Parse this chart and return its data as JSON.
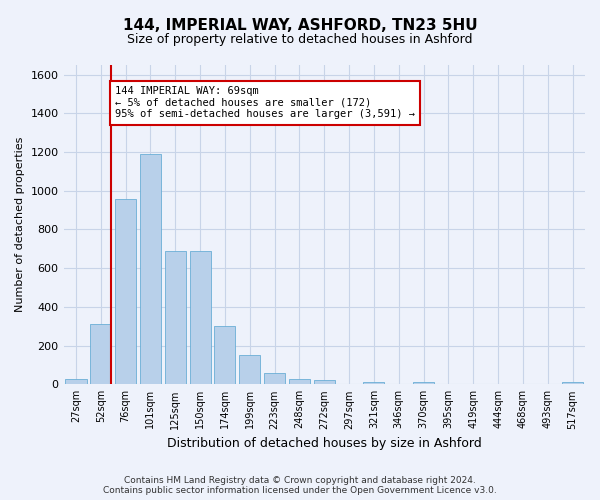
{
  "title": "144, IMPERIAL WAY, ASHFORD, TN23 5HU",
  "subtitle": "Size of property relative to detached houses in Ashford",
  "xlabel": "Distribution of detached houses by size in Ashford",
  "ylabel": "Number of detached properties",
  "categories": [
    "27sqm",
    "52sqm",
    "76sqm",
    "101sqm",
    "125sqm",
    "150sqm",
    "174sqm",
    "199sqm",
    "223sqm",
    "248sqm",
    "272sqm",
    "297sqm",
    "321sqm",
    "346sqm",
    "370sqm",
    "395sqm",
    "419sqm",
    "444sqm",
    "468sqm",
    "493sqm",
    "517sqm"
  ],
  "values": [
    25,
    310,
    960,
    1190,
    690,
    690,
    300,
    150,
    60,
    25,
    20,
    0,
    10,
    0,
    10,
    0,
    0,
    0,
    0,
    0,
    10
  ],
  "bar_color": "#b8d0ea",
  "bar_edge_color": "#6aaed6",
  "grid_color": "#c8d4e8",
  "background_color": "#eef2fb",
  "vline_color": "#cc0000",
  "vline_x_index": 1,
  "annotation_text": "144 IMPERIAL WAY: 69sqm\n← 5% of detached houses are smaller (172)\n95% of semi-detached houses are larger (3,591) →",
  "annotation_box_color": "#ffffff",
  "annotation_box_edge": "#cc0000",
  "ylim": [
    0,
    1650
  ],
  "yticks": [
    0,
    200,
    400,
    600,
    800,
    1000,
    1200,
    1400,
    1600
  ],
  "footer": "Contains HM Land Registry data © Crown copyright and database right 2024.\nContains public sector information licensed under the Open Government Licence v3.0."
}
